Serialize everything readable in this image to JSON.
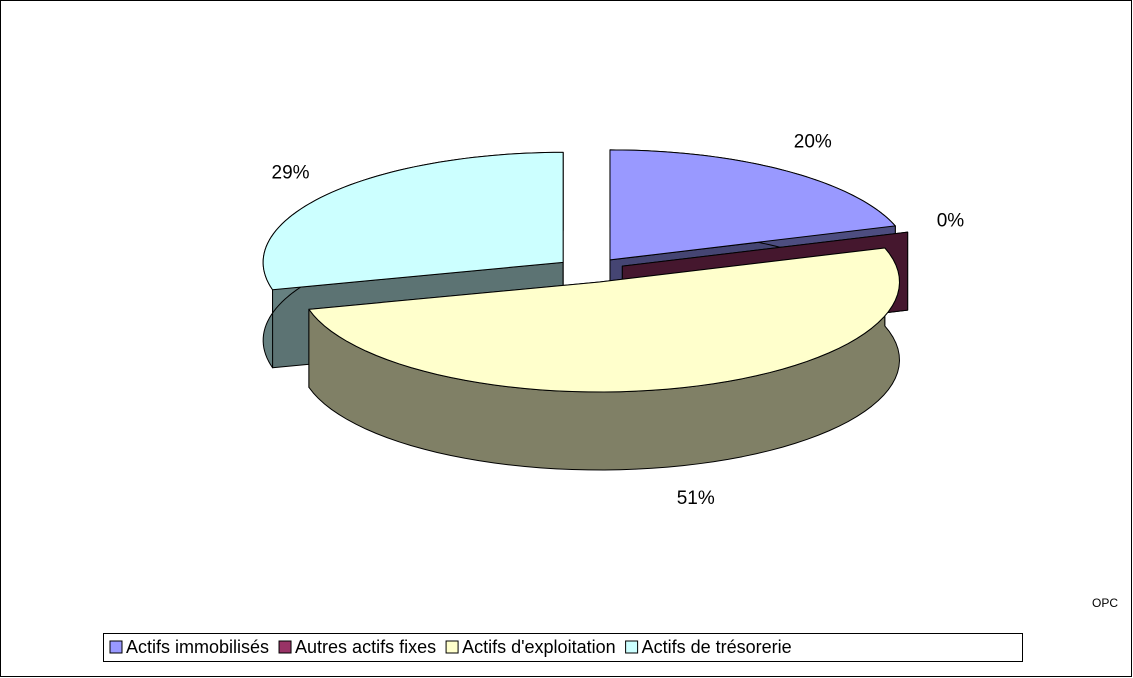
{
  "chart_data": {
    "type": "pie",
    "categories": [
      "Actifs immobilisés",
      "Autres actifs fixes",
      "Actifs d'exploitation",
      "Actifs de trésorerie"
    ],
    "values": [
      20,
      0,
      51,
      29
    ],
    "value_labels": [
      "20%",
      "0%",
      "51%",
      "29%"
    ],
    "colors": [
      "#9999ff",
      "#993366",
      "#ffffcc",
      "#ccffff"
    ],
    "annotation": "OPC",
    "legend": "bottom"
  }
}
